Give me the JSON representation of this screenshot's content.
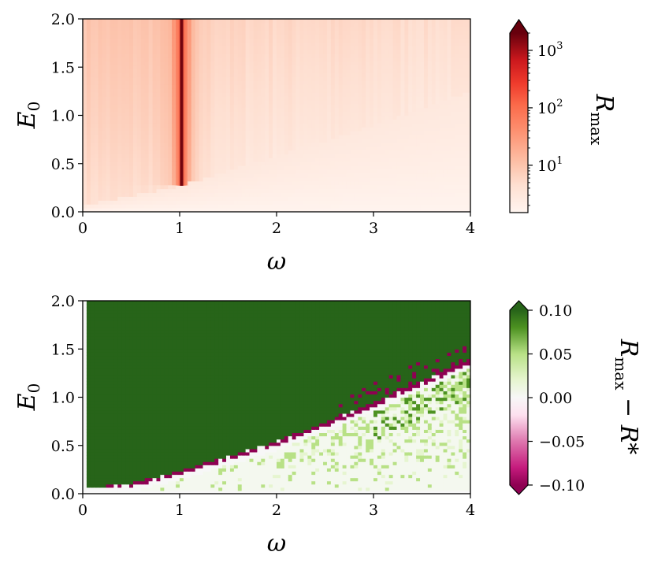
{
  "figure": {
    "panels": [
      {
        "id": "top",
        "xlabel": "ω",
        "ylabel": "E",
        "ylabel_sub": "0",
        "colorbar_label": "R",
        "colorbar_label_sub": "max",
        "xticks": [
          "0",
          "1",
          "2",
          "3",
          "4"
        ],
        "yticks": [
          "0.0",
          "0.5",
          "1.0",
          "1.5",
          "2.0"
        ],
        "colorbar_ticks": [
          {
            "base": "10",
            "exp": "1"
          },
          {
            "base": "10",
            "exp": "2"
          },
          {
            "base": "10",
            "exp": "3"
          }
        ]
      },
      {
        "id": "bottom",
        "xlabel": "ω",
        "ylabel": "E",
        "ylabel_sub": "0",
        "colorbar_label": "R",
        "colorbar_label_sub": "max",
        "colorbar_label_rest": " − R*",
        "xticks": [
          "0",
          "1",
          "2",
          "3",
          "4"
        ],
        "yticks": [
          "0.0",
          "0.5",
          "1.0",
          "1.5",
          "2.0"
        ],
        "colorbar_ticks": [
          "0.10",
          "0.05",
          "0.00",
          "−0.05",
          "−0.10"
        ]
      }
    ]
  },
  "chart_data": [
    {
      "type": "heatmap",
      "title": "",
      "xlabel": "ω",
      "ylabel": "E₀",
      "xlim": [
        0,
        4
      ],
      "ylim": [
        0,
        2
      ],
      "colorbar": {
        "label": "R_max",
        "scale": "log",
        "range": [
          1.5,
          2000
        ],
        "cmap": "Reds",
        "extend": "max"
      },
      "features": {
        "resonance_omega": 1.02,
        "resonance_onset_E0": 0.27,
        "resonance_peak_value": 2000,
        "background_value": 3,
        "low_region_boundary_E0_at_omega": [
          [
            0,
            0.07
          ],
          [
            1,
            0.27
          ],
          [
            2,
            0.58
          ],
          [
            3,
            0.9
          ],
          [
            4,
            1.25
          ]
        ]
      }
    },
    {
      "type": "heatmap",
      "title": "",
      "xlabel": "ω",
      "ylabel": "E₀",
      "xlim": [
        0,
        4
      ],
      "ylim": [
        0,
        2
      ],
      "colorbar": {
        "label": "R_max − R*",
        "scale": "linear",
        "range": [
          -0.1,
          0.1
        ],
        "cmap": "PiYG",
        "extend": "both"
      },
      "features": {
        "upper_region_value": 0.1,
        "boundary_band_value": -0.1,
        "lower_region_value": 0.0,
        "boundary_E0_at_omega": [
          [
            0.4,
            0.05
          ],
          [
            1,
            0.2
          ],
          [
            2,
            0.5
          ],
          [
            3,
            0.9
          ],
          [
            4,
            1.35
          ]
        ]
      }
    }
  ]
}
